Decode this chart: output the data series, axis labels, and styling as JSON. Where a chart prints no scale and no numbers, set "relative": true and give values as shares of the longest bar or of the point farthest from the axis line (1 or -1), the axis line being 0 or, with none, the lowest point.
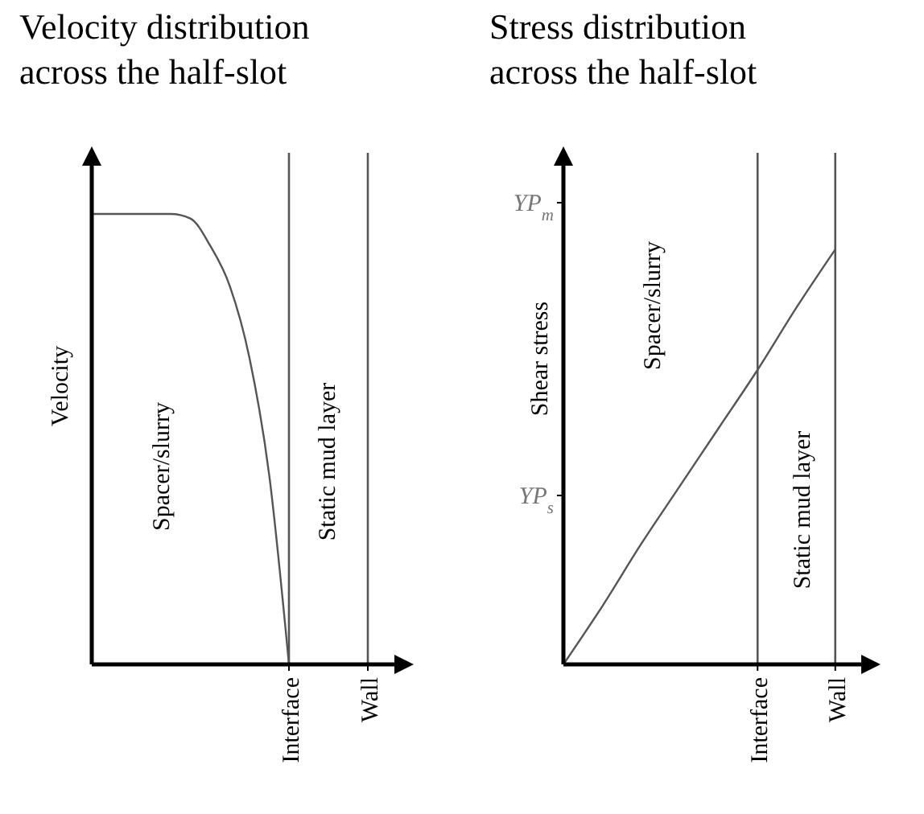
{
  "chart_data": [
    {
      "type": "line",
      "title": "Velocity distribution\nacross the half-slot",
      "ylabel": "Velocity",
      "relative": true,
      "categories": [
        null,
        null,
        null,
        null,
        null,
        null,
        null,
        null,
        null,
        null,
        "Interface",
        null,
        null,
        null,
        "Wall",
        null,
        null
      ],
      "series": [
        {
          "color": "#555555",
          "values": [
            1,
            1,
            1,
            1,
            1,
            0.99,
            0.93,
            0.84,
            0.68,
            0.42,
            0,
            null,
            null,
            null,
            null,
            null,
            null
          ]
        }
      ],
      "ref_lines": [
        {
          "axis": "x",
          "value": "Interface",
          "color": "#555555"
        },
        {
          "axis": "x",
          "value": "Wall",
          "color": "#555555"
        }
      ],
      "annotations": [
        "Spacer/slurry",
        "Static mud layer"
      ]
    },
    {
      "type": "line",
      "title": "Stress distribution\nacross the half-slot",
      "ylabel": "Shear stress",
      "relative": true,
      "categories": [
        null,
        null,
        null,
        null,
        null,
        "Interface",
        null,
        "Wall",
        null
      ],
      "series": [
        {
          "color": "#555555",
          "values": [
            0,
            0.14,
            0.29,
            0.43,
            0.57,
            0.71,
            0.86,
            1,
            null
          ]
        }
      ],
      "ref_lines": [
        {
          "axis": "x",
          "value": "Interface",
          "color": "#555555"
        },
        {
          "axis": "x",
          "value": "Wall",
          "color": "#555555"
        }
      ],
      "annotations": [
        "YP$_{m}$",
        "YP$_{s}$",
        "Spacer/slurry",
        "Static mud layer"
      ]
    }
  ]
}
